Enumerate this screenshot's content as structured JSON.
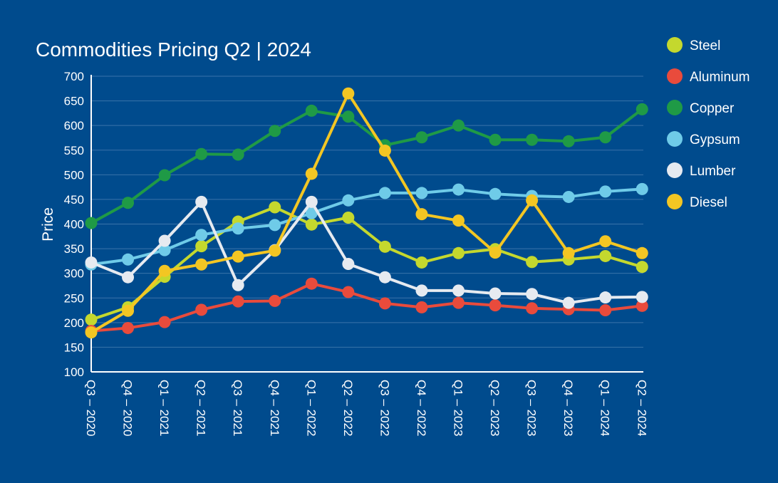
{
  "chart_data": {
    "type": "line",
    "title": "Commodities Pricing Q2 | 2024",
    "xlabel": "",
    "ylabel": "Price",
    "ylim": [
      100,
      700
    ],
    "yticks": [
      100,
      150,
      200,
      250,
      300,
      350,
      400,
      450,
      500,
      550,
      600,
      650,
      700
    ],
    "grid": true,
    "legend_position": "right",
    "categories": [
      "Q3 – 2020",
      "Q4 – 2020",
      "Q1 – 2021",
      "Q2 – 2021",
      "Q3 – 2021",
      "Q4 – 2021",
      "Q1 – 2022",
      "Q2 – 2022",
      "Q3 – 2022",
      "Q4 – 2022",
      "Q1 – 2023",
      "Q2 – 2023",
      "Q3 – 2023",
      "Q4 – 2023",
      "Q1 – 2024",
      "Q2 – 2024"
    ],
    "series": [
      {
        "name": "Steel",
        "color": "#c4d82e",
        "values": [
          206,
          231,
          293,
          355,
          405,
          434,
          399,
          413,
          354,
          322,
          341,
          349,
          323,
          328,
          335,
          313
        ]
      },
      {
        "name": "Aluminum",
        "color": "#e94b3c",
        "values": [
          183,
          189,
          201,
          226,
          243,
          244,
          279,
          262,
          239,
          231,
          240,
          235,
          229,
          227,
          225,
          234
        ]
      },
      {
        "name": "Copper",
        "color": "#1f9a46",
        "values": [
          402,
          443,
          499,
          542,
          541,
          589,
          630,
          618,
          560,
          576,
          600,
          571,
          571,
          568,
          576,
          633
        ]
      },
      {
        "name": "Gypsum",
        "color": "#6fcbe8",
        "values": [
          318,
          328,
          347,
          378,
          391,
          398,
          422,
          448,
          463,
          463,
          470,
          461,
          457,
          455,
          466,
          471
        ]
      },
      {
        "name": "Lumber",
        "color": "#e6eaf0",
        "values": [
          322,
          292,
          366,
          445,
          276,
          347,
          445,
          319,
          292,
          265,
          265,
          259,
          258,
          240,
          251,
          252
        ]
      },
      {
        "name": "Diesel",
        "color": "#f3c623",
        "values": [
          180,
          224,
          305,
          318,
          334,
          346,
          502,
          665,
          549,
          420,
          407,
          342,
          448,
          341,
          365,
          341
        ]
      }
    ]
  }
}
